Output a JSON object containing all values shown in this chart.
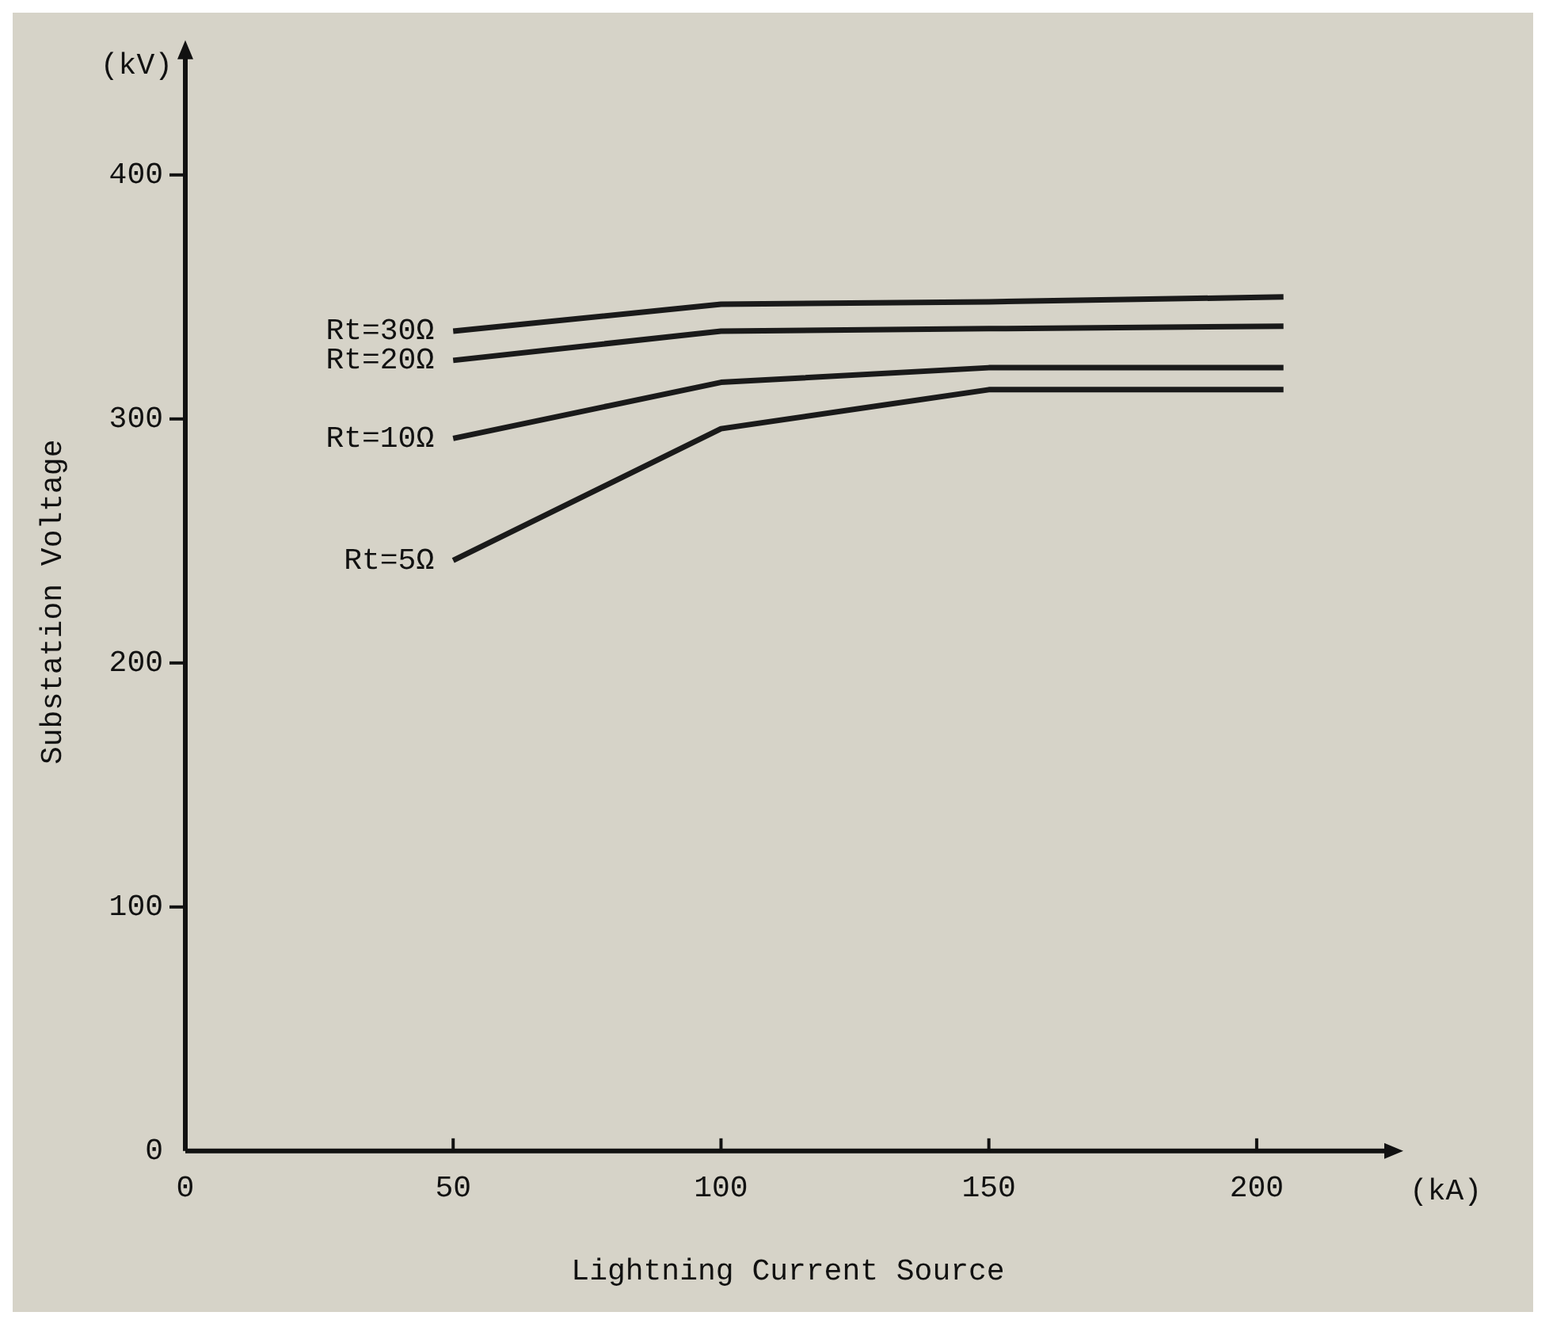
{
  "chart_data": {
    "type": "line",
    "xlabel": "Lightning Current Source",
    "ylabel": "Substation Voltage",
    "annotations": [
      "(kV)",
      "(kA)"
    ],
    "x": [
      50,
      100,
      150,
      205
    ],
    "series": [
      {
        "name": "Rt=30Ω",
        "color": "#1a1a1a",
        "values": [
          336,
          347,
          348,
          350
        ]
      },
      {
        "name": "Rt=20Ω",
        "color": "#1a1a1a",
        "values": [
          324,
          336,
          337,
          338
        ]
      },
      {
        "name": "Rt=10Ω",
        "color": "#1a1a1a",
        "values": [
          292,
          315,
          321,
          321
        ]
      },
      {
        "name": "Rt=5Ω",
        "color": "#1a1a1a",
        "values": [
          242,
          296,
          312,
          312
        ]
      }
    ],
    "xlim": [
      0,
      225
    ],
    "xticks": [
      0,
      50,
      100,
      150,
      200
    ],
    "ylim": [
      0,
      450
    ],
    "yticks": [
      0,
      100,
      200,
      300,
      400
    ],
    "grid": false,
    "legend": false,
    "marker": "none",
    "line_style": "solid"
  }
}
